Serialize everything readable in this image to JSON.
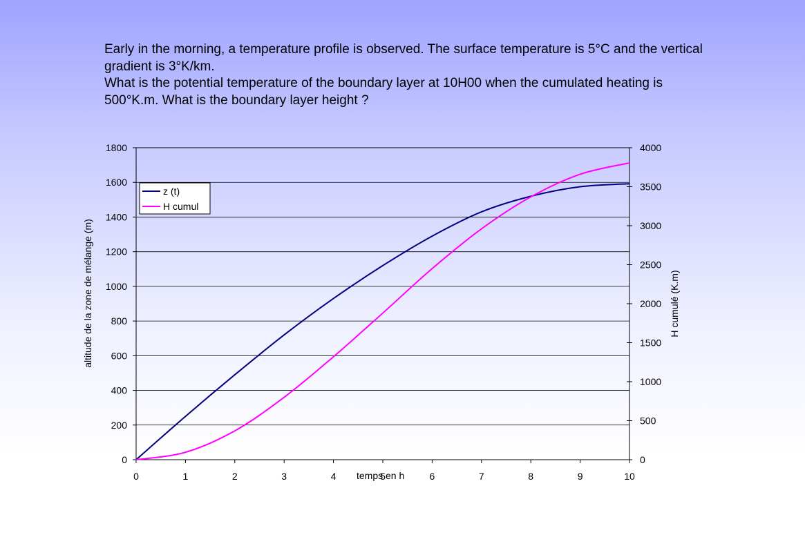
{
  "question": {
    "paragraph1": "Early in the morning, a temperature profile is observed. The surface temperature is 5°C and the vertical gradient is 3°K/km.",
    "paragraph2": "What is the potential temperature of the boundary layer at 10H00 when the cumulated heating is 500°K.m. What is the boundary layer height ?"
  },
  "chart_data": {
    "type": "line",
    "xlabel": "temps en h",
    "ylabel": "altitude de la zone de mélange (m)",
    "y2label": "H cumulé (K.m)",
    "xlim": [
      0,
      10
    ],
    "ylim": [
      0,
      1800
    ],
    "y2lim": [
      0,
      4000
    ],
    "x_ticks": [
      "0",
      "1",
      "2",
      "3",
      "4",
      "5",
      "6",
      "7",
      "8",
      "9",
      "10"
    ],
    "y_ticks": [
      "0",
      "200",
      "400",
      "600",
      "800",
      "1000",
      "1200",
      "1400",
      "1600",
      "1800"
    ],
    "y2_ticks": [
      "0",
      "500",
      "1000",
      "1500",
      "2000",
      "2500",
      "3000",
      "3500",
      "4000"
    ],
    "grid": "horizontal",
    "legend_position": "top-left",
    "x": [
      0,
      1,
      2,
      3,
      4,
      5,
      6,
      7,
      8,
      9,
      10
    ],
    "series": [
      {
        "name": "z (t)",
        "axis": "left",
        "color": "#000080",
        "values": [
          0,
          250,
          490,
          720,
          930,
          1120,
          1290,
          1430,
          1520,
          1575,
          1592
        ]
      },
      {
        "name": "H cumul",
        "axis": "right",
        "color": "#ff00ff",
        "values": [
          0,
          95,
          370,
          800,
          1320,
          1880,
          2450,
          2960,
          3370,
          3660,
          3805
        ]
      }
    ]
  }
}
